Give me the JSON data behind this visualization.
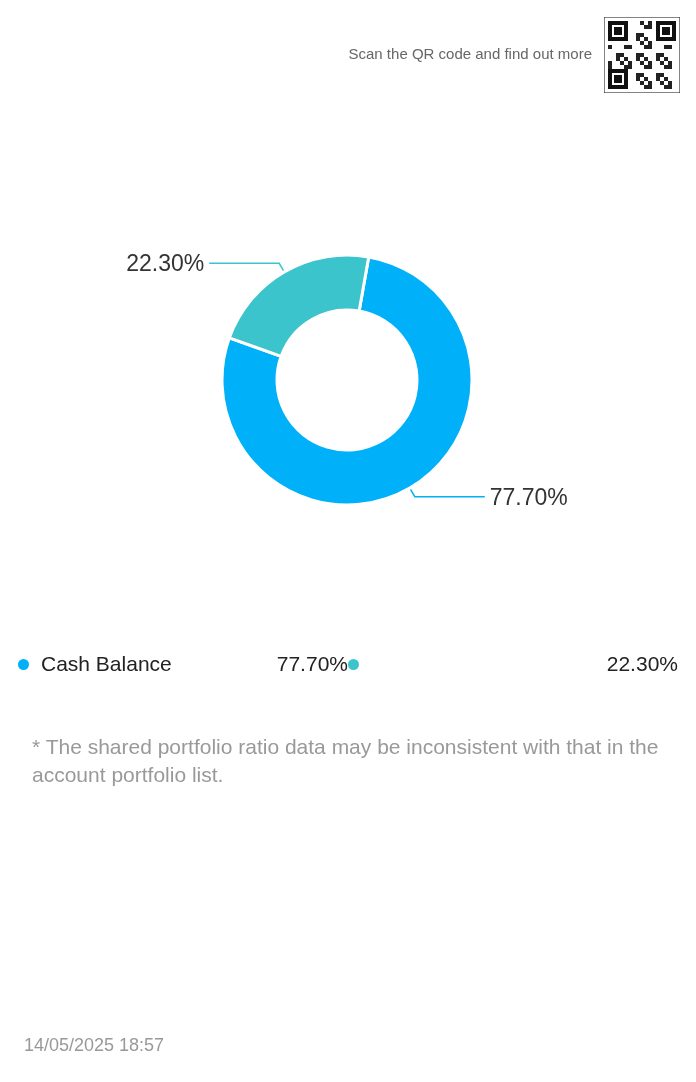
{
  "chart_data": {
    "type": "donut",
    "categories": [
      "Cash Balance",
      null
    ],
    "values": [
      77.7,
      22.3
    ],
    "colors": [
      "#00b0f8",
      "#3cc4cc"
    ],
    "value_labels": [
      "77.70%",
      "22.30%"
    ],
    "legend": "bottom",
    "annotations": [
      "Scan the QR code and find out more",
      "* The shared portfolio ratio data may be inconsistent with that in the account portfolio list.",
      "14/05/2025 18:57"
    ]
  }
}
